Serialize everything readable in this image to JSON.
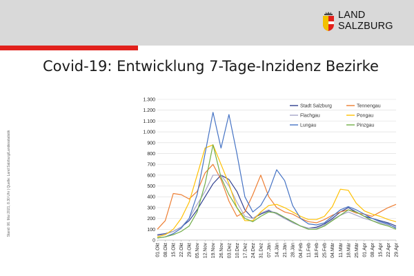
{
  "header": {
    "logo_line1": "LAND",
    "logo_line2": "SALZBURG",
    "accent_color": "#e2211c",
    "bar_color": "#d9d9d9"
  },
  "slide": {
    "title": "Covid-19: Entwicklung 7-Tage-Inzidenz Bezirke",
    "side_note": "Stand: 06. Mai 2021, 8.30 Uhr | Quelle: Land Salzburg/Landesstatistik"
  },
  "chart_data": {
    "type": "line",
    "ylim": [
      0,
      1300
    ],
    "yticks": [
      0,
      100,
      200,
      300,
      400,
      500,
      600,
      700,
      800,
      900,
      1000,
      1100,
      1200,
      1300
    ],
    "ytick_labels": [
      "0",
      "100",
      "200",
      "300",
      "400",
      "500",
      "600",
      "700",
      "800",
      "900",
      "1.000",
      "1.100",
      "1.200",
      "1.300"
    ],
    "x_labels": [
      "01.Okt",
      "08.Okt",
      "15.Okt",
      "22.Okt",
      "29.Okt",
      "05.Nov",
      "12.Nov",
      "19.Nov",
      "26.Nov",
      "03.Dez",
      "10.Dez",
      "17.Dez",
      "24.Dez",
      "31.Dez",
      "07.Jän",
      "14.Jän",
      "21.Jän",
      "28.Jän",
      "04.Feb",
      "11.Feb",
      "18.Feb",
      "25.Feb",
      "04.Mär",
      "11.Mär",
      "18.Mär",
      "25.Mär",
      "01.Apr",
      "08.Apr",
      "15.Apr",
      "22.Apr",
      "29.Apr"
    ],
    "grid": true,
    "legend_position": "top-right",
    "series": [
      {
        "name": "Stadt Salzburg",
        "color": "#2f3f8f",
        "values": [
          50,
          60,
          80,
          120,
          180,
          280,
          400,
          520,
          600,
          560,
          450,
          280,
          200,
          240,
          270,
          250,
          200,
          170,
          130,
          110,
          120,
          150,
          200,
          260,
          300,
          260,
          220,
          200,
          180,
          160,
          130
        ]
      },
      {
        "name": "Tennengau",
        "color": "#ed7d31",
        "values": [
          100,
          180,
          430,
          420,
          380,
          450,
          620,
          700,
          560,
          360,
          220,
          260,
          420,
          600,
          400,
          300,
          260,
          240,
          200,
          170,
          160,
          190,
          230,
          260,
          280,
          250,
          240,
          220,
          260,
          300,
          330
        ]
      },
      {
        "name": "Flachgau",
        "color": "#a5a5c8",
        "values": [
          40,
          55,
          80,
          120,
          200,
          330,
          450,
          600,
          600,
          500,
          350,
          220,
          200,
          250,
          280,
          240,
          200,
          160,
          130,
          110,
          110,
          140,
          190,
          230,
          260,
          230,
          200,
          180,
          160,
          140,
          120
        ]
      },
      {
        "name": "Pongau",
        "color": "#ffc000",
        "values": [
          30,
          50,
          100,
          200,
          350,
          600,
          850,
          880,
          700,
          520,
          300,
          180,
          180,
          260,
          320,
          330,
          300,
          260,
          220,
          190,
          190,
          220,
          310,
          470,
          460,
          340,
          270,
          240,
          220,
          190,
          170
        ]
      },
      {
        "name": "Lungau",
        "color": "#4472c4",
        "values": [
          20,
          30,
          60,
          110,
          200,
          420,
          800,
          1180,
          850,
          1160,
          800,
          400,
          260,
          320,
          450,
          650,
          550,
          320,
          200,
          150,
          140,
          160,
          220,
          280,
          310,
          280,
          240,
          200,
          170,
          150,
          110
        ]
      },
      {
        "name": "Pinzgau",
        "color": "#70ad47",
        "values": [
          20,
          30,
          50,
          80,
          130,
          260,
          520,
          880,
          580,
          420,
          300,
          200,
          170,
          220,
          260,
          250,
          210,
          170,
          130,
          100,
          100,
          130,
          180,
          230,
          280,
          260,
          220,
          180,
          150,
          130,
          100
        ]
      }
    ]
  }
}
